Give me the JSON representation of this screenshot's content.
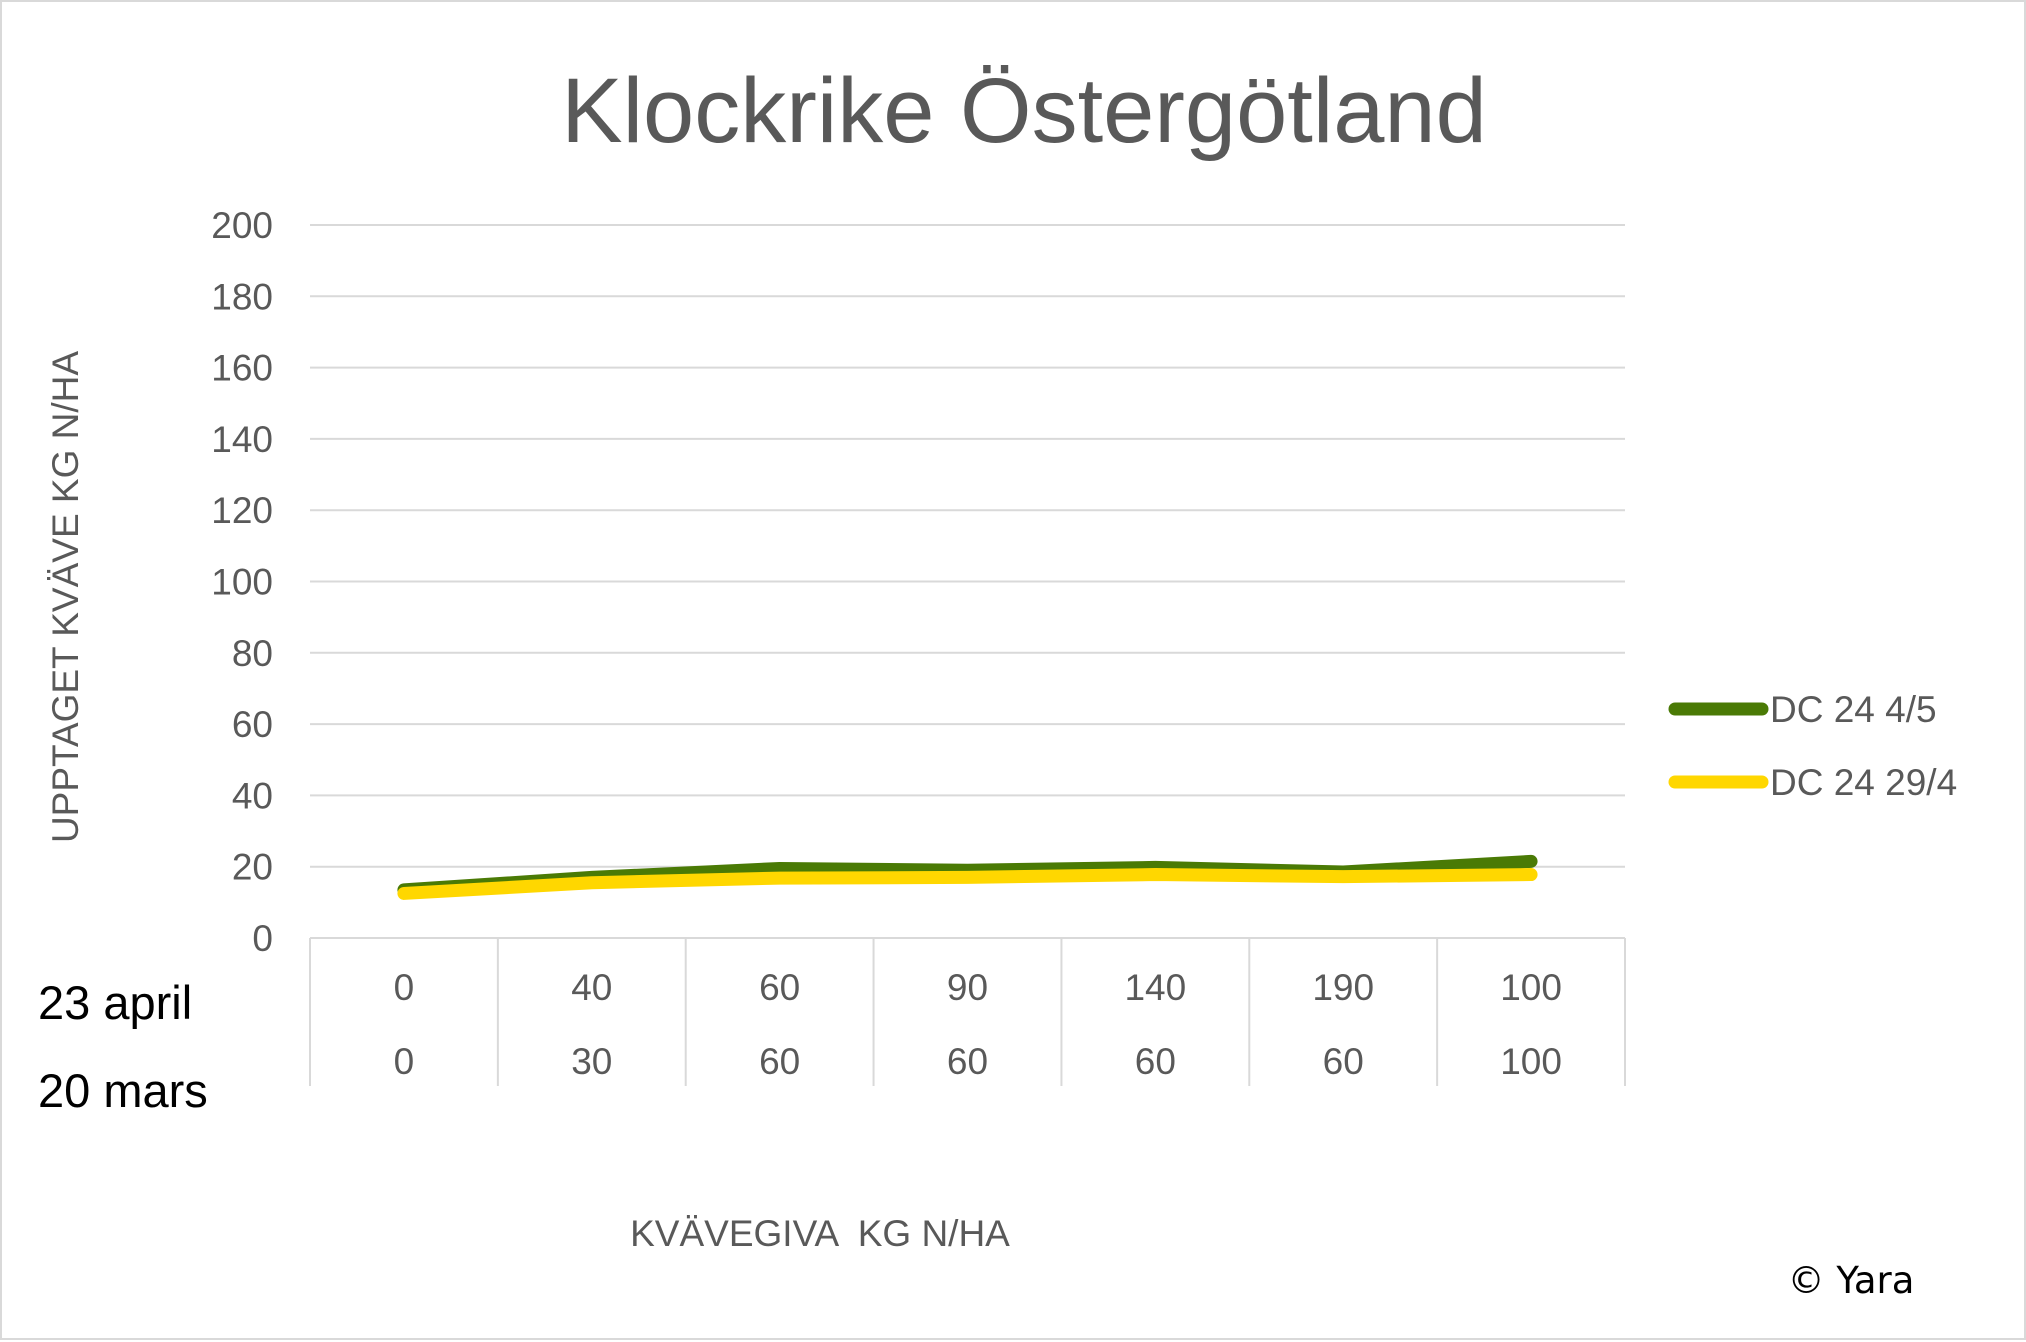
{
  "chart_data": {
    "type": "line",
    "title": "Klockrike Östergötland",
    "ylabel": "UPPTAGET KVÄVE KG N/HA",
    "xlabel": "KVÄVEGIVA  KG N/HA",
    "ylim": [
      0,
      200
    ],
    "yticks": [
      "0",
      "20",
      "40",
      "60",
      "80",
      "100",
      "120",
      "140",
      "160",
      "180",
      "200"
    ],
    "category_rows": [
      {
        "label": "23 april",
        "values": [
          "0",
          "40",
          "60",
          "90",
          "140",
          "190",
          "100"
        ]
      },
      {
        "label": "20 mars",
        "values": [
          "0",
          "30",
          "60",
          "60",
          "60",
          "60",
          "100"
        ]
      }
    ],
    "series": [
      {
        "name": "DC 24 4/5",
        "color": "#4a7a05",
        "values": [
          13.5,
          17,
          19.5,
          19,
          19.8,
          18.5,
          21.5
        ]
      },
      {
        "name": "DC 24 29/4",
        "color": "#ffd700",
        "values": [
          12.5,
          15.5,
          16.8,
          17,
          17.8,
          17.2,
          17.8
        ]
      }
    ],
    "grid": true,
    "legend_position": "right"
  },
  "copyright": "© Yara"
}
